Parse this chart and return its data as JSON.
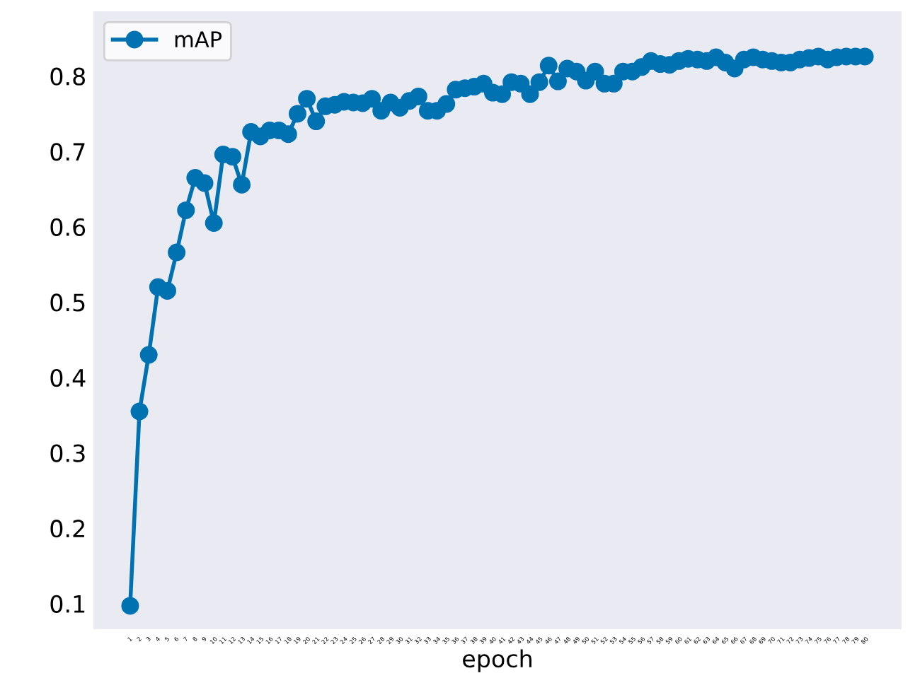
{
  "chart_data": {
    "type": "line",
    "xlabel": "epoch",
    "categories": [
      "1",
      "2",
      "3",
      "4",
      "5",
      "6",
      "7",
      "8",
      "9",
      "10",
      "11",
      "12",
      "13",
      "14",
      "15",
      "16",
      "17",
      "18",
      "19",
      "20",
      "21",
      "22",
      "23",
      "24",
      "25",
      "26",
      "27",
      "28",
      "29",
      "30",
      "31",
      "32",
      "33",
      "34",
      "35",
      "36",
      "37",
      "38",
      "39",
      "40",
      "41",
      "42",
      "43",
      "44",
      "45",
      "46",
      "47",
      "48",
      "49",
      "50",
      "51",
      "52",
      "53",
      "54",
      "55",
      "56",
      "57",
      "58",
      "59",
      "60",
      "61",
      "62",
      "63",
      "64",
      "65",
      "66",
      "67",
      "68",
      "69",
      "70",
      "71",
      "72",
      "73",
      "74",
      "75",
      "76",
      "77",
      "78",
      "79",
      "80"
    ],
    "series": [
      {
        "name": "mAP",
        "color": "#0072b2",
        "values": [
          0.097,
          0.355,
          0.43,
          0.52,
          0.515,
          0.566,
          0.622,
          0.665,
          0.658,
          0.605,
          0.696,
          0.693,
          0.656,
          0.726,
          0.72,
          0.728,
          0.728,
          0.723,
          0.75,
          0.77,
          0.74,
          0.76,
          0.762,
          0.766,
          0.765,
          0.764,
          0.77,
          0.754,
          0.765,
          0.758,
          0.767,
          0.773,
          0.754,
          0.754,
          0.763,
          0.782,
          0.784,
          0.786,
          0.79,
          0.778,
          0.776,
          0.792,
          0.79,
          0.776,
          0.792,
          0.814,
          0.793,
          0.81,
          0.806,
          0.794,
          0.806,
          0.79,
          0.79,
          0.806,
          0.806,
          0.812,
          0.82,
          0.816,
          0.815,
          0.82,
          0.823,
          0.822,
          0.82,
          0.825,
          0.818,
          0.81,
          0.822,
          0.825,
          0.822,
          0.82,
          0.818,
          0.818,
          0.822,
          0.824,
          0.826,
          0.822,
          0.825,
          0.826,
          0.826,
          0.826
        ]
      }
    ],
    "ylim": [
      0.066,
      0.886
    ],
    "yticks": [
      0.1,
      0.2,
      0.3,
      0.4,
      0.5,
      0.6,
      0.7,
      0.8
    ],
    "legend": "top left",
    "marker": "circle",
    "line_style": "solid",
    "grid": false
  }
}
